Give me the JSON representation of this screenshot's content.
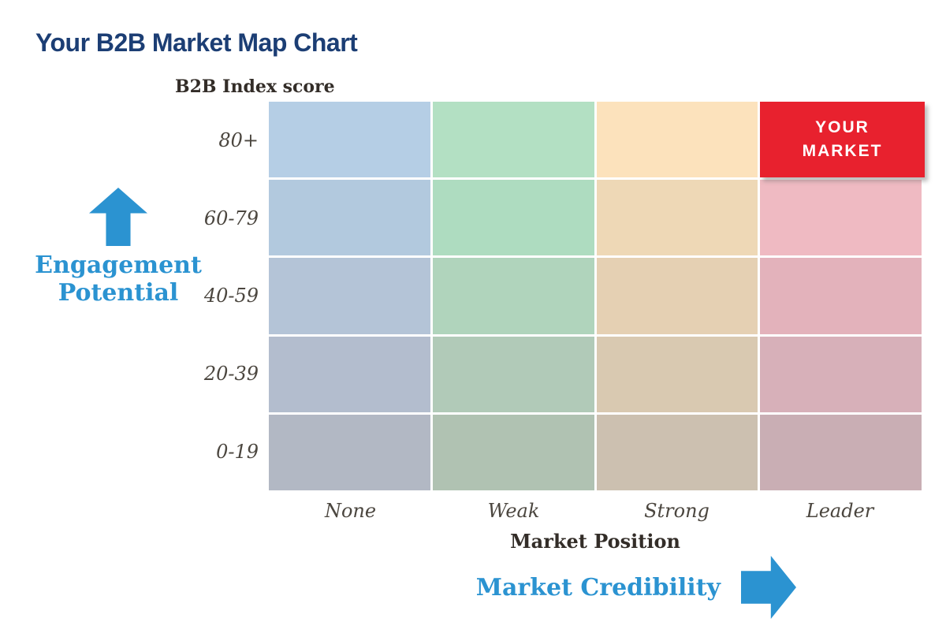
{
  "page": {
    "title": "Your B2B Market Map Chart",
    "background": "#ffffff",
    "title_color": "#1c3e74",
    "accent_blue": "#2b93d1",
    "accent_red": "#e8212e"
  },
  "labels": {
    "y_axis_title": "B2B Index score",
    "x_axis_title": "Market Position",
    "engagement_line1": "Engagement",
    "engagement_line2": "Potential",
    "credibility": "Market Credibility",
    "your_market_line1": "YOUR",
    "your_market_line2": "MARKET"
  },
  "chart_data": {
    "type": "heatmap",
    "title": "Your B2B Market Map Chart",
    "x_axis": {
      "title": "Market Position",
      "categories": [
        "None",
        "Weak",
        "Strong",
        "Leader"
      ]
    },
    "y_axis": {
      "title": "B2B Index score",
      "categories_top_to_bottom": [
        "80+",
        "60-79",
        "40-59",
        "20-39",
        "0-19"
      ]
    },
    "grid": "4 columns x 5 rows of colored cells separated by white gaps",
    "legend_position": "none",
    "highlight": {
      "label": "YOUR MARKET",
      "x": "Leader",
      "y": "80+",
      "color": "#e8212e",
      "text_color": "#ffffff"
    },
    "arrows": [
      {
        "label": "Engagement Potential",
        "direction": "up",
        "color": "#2b93d1"
      },
      {
        "label": "Market Credibility",
        "direction": "right",
        "color": "#2b93d1"
      }
    ],
    "cell_colors": [
      [
        "#b5cee5",
        "#b3e0c3",
        "#fce2bc",
        "#e8212e"
      ],
      [
        "#b2c9de",
        "#aedcc0",
        "#eed8b6",
        "#efbac2"
      ],
      [
        "#b4c4d7",
        "#b0d4bc",
        "#e5d0b3",
        "#e3b2bb"
      ],
      [
        "#b3bdce",
        "#b1cab8",
        "#d9c9b1",
        "#d7b0b9"
      ],
      [
        "#b2b8c4",
        "#b0c2b2",
        "#ccc0b0",
        "#c9aeb4"
      ]
    ]
  }
}
